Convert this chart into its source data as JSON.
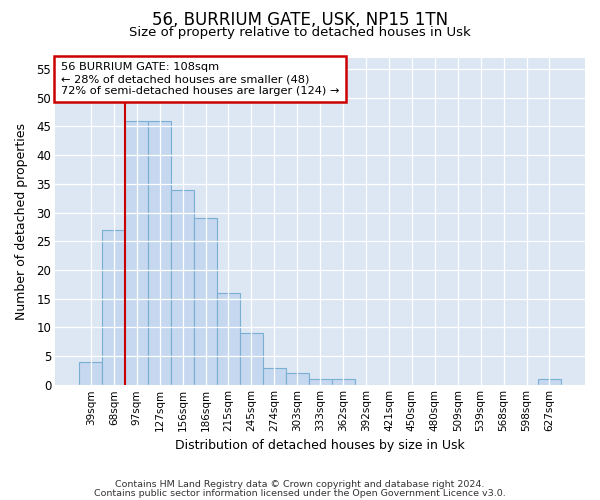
{
  "title1": "56, BURRIUM GATE, USK, NP15 1TN",
  "title2": "Size of property relative to detached houses in Usk",
  "xlabel": "Distribution of detached houses by size in Usk",
  "ylabel": "Number of detached properties",
  "categories": [
    "39sqm",
    "68sqm",
    "97sqm",
    "127sqm",
    "156sqm",
    "186sqm",
    "215sqm",
    "245sqm",
    "274sqm",
    "303sqm",
    "333sqm",
    "362sqm",
    "392sqm",
    "421sqm",
    "450sqm",
    "480sqm",
    "509sqm",
    "539sqm",
    "568sqm",
    "598sqm",
    "627sqm"
  ],
  "values": [
    4,
    27,
    46,
    46,
    34,
    29,
    16,
    9,
    3,
    2,
    1,
    1,
    0,
    0,
    0,
    0,
    0,
    0,
    0,
    0,
    1
  ],
  "bar_color": "#c5d8ef",
  "bar_edge_color": "#7aafd4",
  "plot_bg_color": "#dce7f3",
  "fig_bg_color": "#ffffff",
  "grid_color": "#ffffff",
  "vline_position": 1.5,
  "vline_color": "#cc0000",
  "annotation_text": "56 BURRIUM GATE: 108sqm\n← 28% of detached houses are smaller (48)\n72% of semi-detached houses are larger (124) →",
  "annotation_box_facecolor": "#ffffff",
  "annotation_box_edgecolor": "#cc0000",
  "ylim": [
    0,
    57
  ],
  "yticks": [
    0,
    5,
    10,
    15,
    20,
    25,
    30,
    35,
    40,
    45,
    50,
    55
  ],
  "footer1": "Contains HM Land Registry data © Crown copyright and database right 2024.",
  "footer2": "Contains public sector information licensed under the Open Government Licence v3.0."
}
